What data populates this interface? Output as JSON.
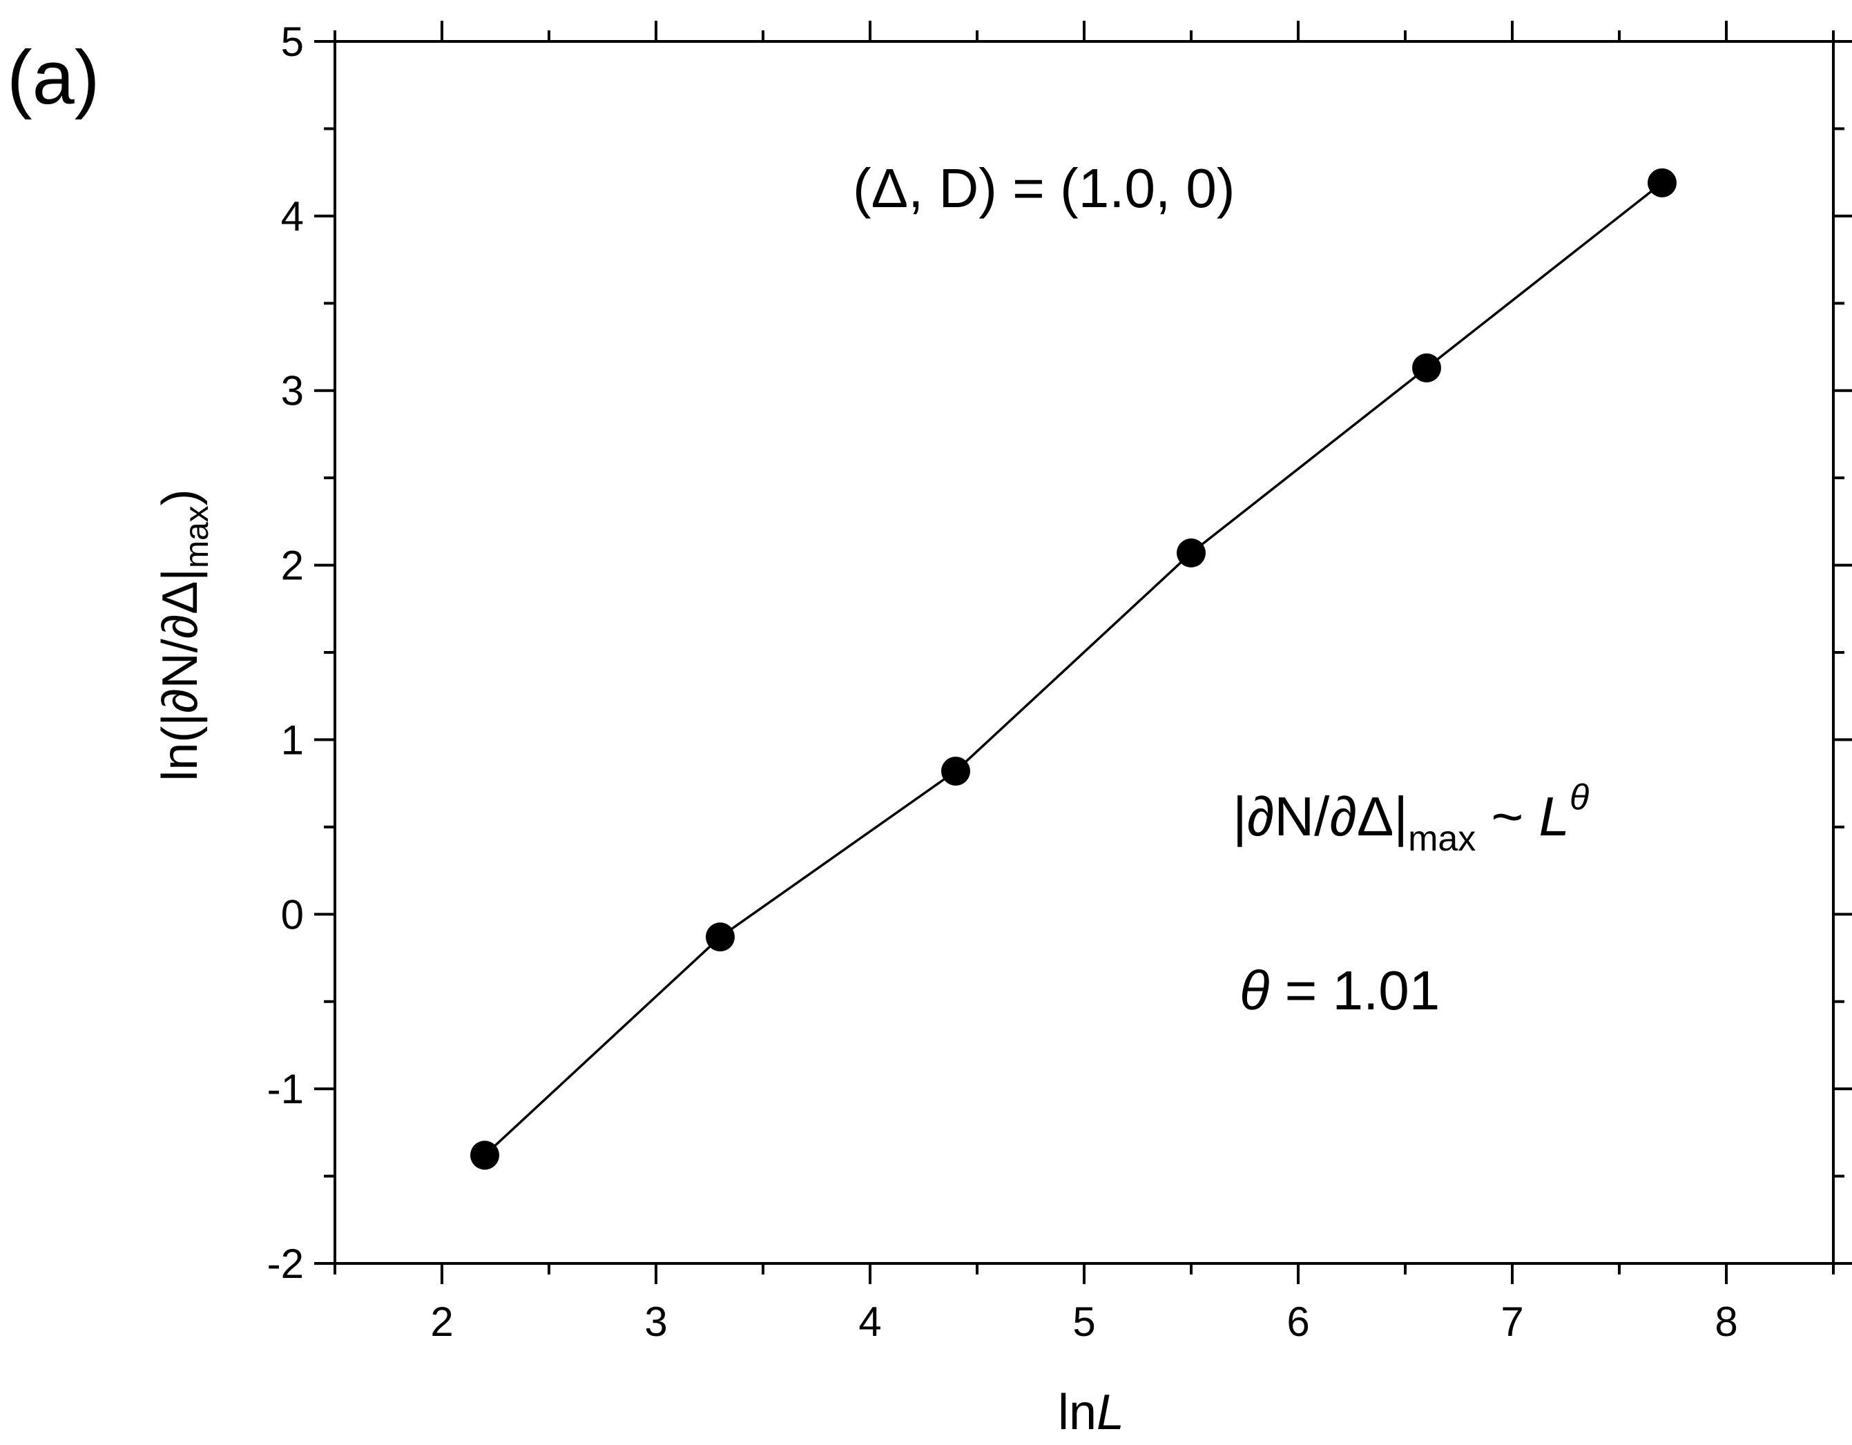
{
  "panel_label": "(a)",
  "annotations": {
    "params": "(Δ, D) = (1.0, 0)",
    "scaling_lhs": "|∂N/∂Δ|",
    "scaling_sub": "max",
    "scaling_op": " ~ ",
    "scaling_L": "L",
    "scaling_exp": "θ",
    "theta_symbol": "θ",
    "theta_value": " = 1.01"
  },
  "chart_data": {
    "type": "line",
    "xlabel_prefix": "ln",
    "xlabel_var": "L",
    "ylabel_main": "ln(|∂N/∂Δ|",
    "ylabel_sub": "max",
    "ylabel_close": ")",
    "xlim": [
      1.5,
      8.5
    ],
    "ylim": [
      -2,
      5
    ],
    "x_ticks": [
      2,
      3,
      4,
      5,
      6,
      7,
      8
    ],
    "y_ticks": [
      -2,
      -1,
      0,
      1,
      2,
      3,
      4,
      5
    ],
    "x_tick_labels": [
      "2",
      "3",
      "4",
      "5",
      "6",
      "7",
      "8"
    ],
    "y_tick_labels": [
      "-2",
      "-1",
      "0",
      "1",
      "2",
      "3",
      "4",
      "5"
    ],
    "series": [
      {
        "marker": "filled-circle",
        "color": "#000000",
        "x": [
          2.2,
          3.3,
          4.4,
          5.5,
          6.6,
          7.7
        ],
        "y": [
          -1.38,
          -0.13,
          0.82,
          2.07,
          3.13,
          4.19
        ]
      }
    ],
    "grid": false,
    "ticks_on_all_sides": true
  }
}
